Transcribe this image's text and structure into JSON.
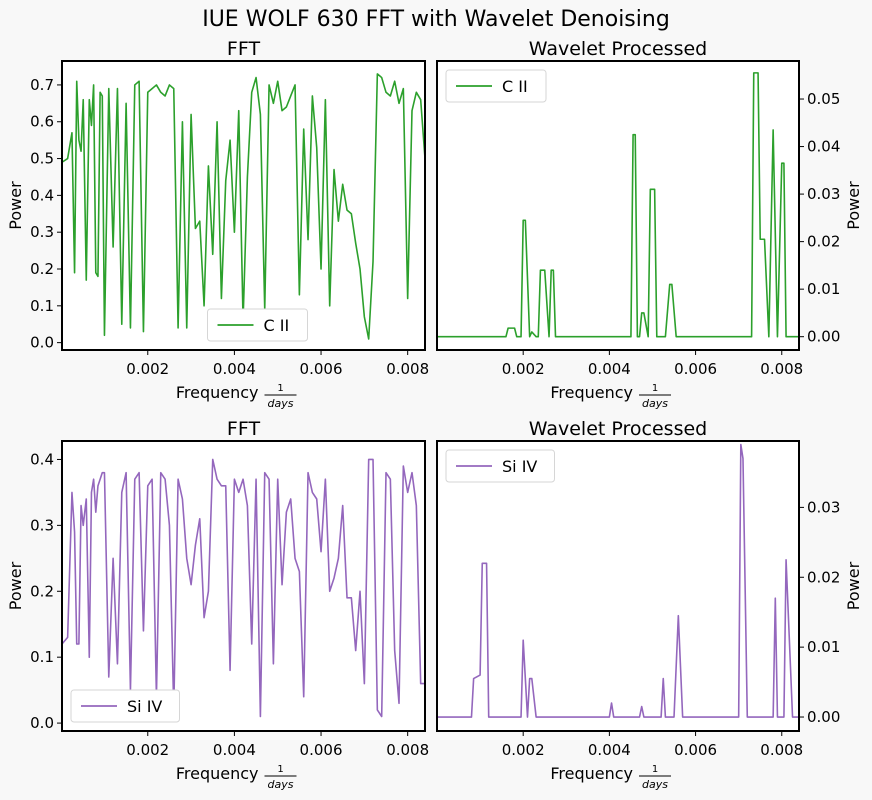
{
  "figure": {
    "title": "IUE WOLF 630 FFT with Wavelet Denoising",
    "colors": {
      "c2": "#2ca02c",
      "si4": "#9467bd"
    }
  },
  "chart_data": [
    {
      "id": "fft_c2",
      "type": "line",
      "title": "FFT",
      "xlabel": "Frequency",
      "xlabel_fraction": {
        "num": "1",
        "den": "days"
      },
      "ylabel": "Power",
      "xlim": [
        2e-05,
        0.0084
      ],
      "ylim": [
        -0.02,
        0.765
      ],
      "xticks": [
        0.002,
        0.004,
        0.006,
        0.008
      ],
      "xtick_labels": [
        "0.002",
        "0.004",
        "0.006",
        "0.008"
      ],
      "yticks": [
        0.0,
        0.1,
        0.2,
        0.3,
        0.4,
        0.5,
        0.6,
        0.7
      ],
      "ytick_labels": [
        "0.0",
        "0.1",
        "0.2",
        "0.3",
        "0.4",
        "0.5",
        "0.6",
        "0.7"
      ],
      "grid": false,
      "legend_position": "lower center",
      "series": [
        {
          "name": "C II",
          "color": "#2ca02c",
          "x": [
            2e-05,
            0.00015,
            0.00025,
            0.00031,
            0.00036,
            0.00041,
            0.00046,
            0.00051,
            0.00058,
            0.00065,
            0.0007,
            0.00075,
            0.0008,
            0.00085,
            0.0009,
            0.00095,
            0.001,
            0.0011,
            0.0012,
            0.0013,
            0.0014,
            0.0015,
            0.0016,
            0.0017,
            0.0018,
            0.0019,
            0.002,
            0.0021,
            0.0022,
            0.0023,
            0.0024,
            0.0025,
            0.0026,
            0.0027,
            0.0028,
            0.0029,
            0.003,
            0.0031,
            0.0032,
            0.0033,
            0.0034,
            0.0035,
            0.0036,
            0.0037,
            0.0038,
            0.0039,
            0.004,
            0.0041,
            0.0042,
            0.0043,
            0.0044,
            0.0045,
            0.0046,
            0.0047,
            0.0048,
            0.0049,
            0.005,
            0.0051,
            0.0052,
            0.0053,
            0.0054,
            0.0055,
            0.0056,
            0.0057,
            0.0058,
            0.0059,
            0.006,
            0.0061,
            0.0062,
            0.0063,
            0.0064,
            0.0065,
            0.0066,
            0.0067,
            0.0068,
            0.0069,
            0.007,
            0.0071,
            0.0072,
            0.0073,
            0.0074,
            0.0075,
            0.0076,
            0.0077,
            0.0078,
            0.0079,
            0.008,
            0.0081,
            0.0082,
            0.0083,
            0.0084
          ],
          "y": [
            0.49,
            0.5,
            0.57,
            0.19,
            0.71,
            0.55,
            0.52,
            0.66,
            0.17,
            0.66,
            0.59,
            0.7,
            0.19,
            0.18,
            0.68,
            0.67,
            0.02,
            0.69,
            0.26,
            0.69,
            0.05,
            0.65,
            0.04,
            0.7,
            0.71,
            0.03,
            0.68,
            0.69,
            0.7,
            0.68,
            0.67,
            0.7,
            0.69,
            0.04,
            0.6,
            0.04,
            0.62,
            0.31,
            0.33,
            0.1,
            0.48,
            0.24,
            0.6,
            0.12,
            0.44,
            0.55,
            0.3,
            0.63,
            0.06,
            0.45,
            0.68,
            0.72,
            0.62,
            0.09,
            0.7,
            0.65,
            0.71,
            0.63,
            0.64,
            0.67,
            0.7,
            0.13,
            0.58,
            0.28,
            0.67,
            0.53,
            0.2,
            0.66,
            0.1,
            0.47,
            0.33,
            0.43,
            0.36,
            0.35,
            0.27,
            0.2,
            0.07,
            0.01,
            0.22,
            0.73,
            0.72,
            0.68,
            0.67,
            0.71,
            0.65,
            0.69,
            0.12,
            0.63,
            0.68,
            0.66,
            0.5
          ]
        }
      ]
    },
    {
      "id": "wav_c2",
      "type": "line",
      "title": "Wavelet Processed",
      "xlabel": "Frequency",
      "xlabel_fraction": {
        "num": "1",
        "den": "days"
      },
      "ylabel": "Power",
      "yaxis_side": "right",
      "xlim": [
        0.0,
        0.0084
      ],
      "ylim": [
        -0.0028,
        0.058
      ],
      "xticks": [
        0.002,
        0.004,
        0.006,
        0.008
      ],
      "xtick_labels": [
        "0.002",
        "0.004",
        "0.006",
        "0.008"
      ],
      "yticks": [
        0.0,
        0.01,
        0.02,
        0.03,
        0.04,
        0.05
      ],
      "ytick_labels": [
        "0.00",
        "0.01",
        "0.02",
        "0.03",
        "0.04",
        "0.05"
      ],
      "grid": false,
      "legend_position": "upper left",
      "series": [
        {
          "name": "C II",
          "color": "#2ca02c",
          "x": [
            0.0,
            0.0016,
            0.00165,
            0.0018,
            0.00185,
            0.00195,
            0.002,
            0.00205,
            0.00215,
            0.0022,
            0.0023,
            0.00235,
            0.0024,
            0.0025,
            0.0026,
            0.00265,
            0.0027,
            0.00275,
            0.0028,
            0.0045,
            0.00455,
            0.0046,
            0.00465,
            0.0047,
            0.00475,
            0.0048,
            0.0049,
            0.00495,
            0.00505,
            0.0051,
            0.0052,
            0.0053,
            0.0054,
            0.00545,
            0.00555,
            0.0056,
            0.0073,
            0.00735,
            0.00745,
            0.0075,
            0.0076,
            0.0077,
            0.0078,
            0.0079,
            0.008,
            0.00805,
            0.0081,
            0.0084
          ],
          "y": [
            0.0,
            0.0,
            0.0018,
            0.0018,
            0.0,
            0.0,
            0.0245,
            0.0245,
            0.0,
            0.001,
            0.0,
            0.0,
            0.014,
            0.014,
            0.0,
            0.014,
            0.014,
            0.0,
            0.0,
            0.0,
            0.0425,
            0.0425,
            0.0,
            0.0,
            0.005,
            0.005,
            0.0,
            0.031,
            0.031,
            0.0,
            0.0,
            0.0,
            0.011,
            0.011,
            0.0,
            0.0,
            0.0,
            0.0555,
            0.0555,
            0.0205,
            0.0205,
            0.0,
            0.0435,
            0.0,
            0.0365,
            0.0365,
            0.0,
            0.0
          ]
        }
      ]
    },
    {
      "id": "fft_si4",
      "type": "line",
      "title": "FFT",
      "xlabel": "Frequency",
      "xlabel_fraction": {
        "num": "1",
        "den": "days"
      },
      "ylabel": "Power",
      "xlim": [
        2e-05,
        0.0084
      ],
      "ylim": [
        -0.012,
        0.428
      ],
      "xticks": [
        0.002,
        0.004,
        0.006,
        0.008
      ],
      "xtick_labels": [
        "0.002",
        "0.004",
        "0.006",
        "0.008"
      ],
      "yticks": [
        0.0,
        0.1,
        0.2,
        0.3,
        0.4
      ],
      "ytick_labels": [
        "0.0",
        "0.1",
        "0.2",
        "0.3",
        "0.4"
      ],
      "grid": false,
      "legend_position": "lower left",
      "series": [
        {
          "name": "Si IV",
          "color": "#9467bd",
          "x": [
            2e-05,
            0.00015,
            0.00025,
            0.00031,
            0.00036,
            0.00041,
            0.00046,
            0.00051,
            0.00058,
            0.00065,
            0.0007,
            0.00075,
            0.0008,
            0.00085,
            0.0009,
            0.00095,
            0.001,
            0.0011,
            0.0012,
            0.0013,
            0.0014,
            0.0015,
            0.0016,
            0.0017,
            0.0018,
            0.0019,
            0.002,
            0.0021,
            0.0022,
            0.0023,
            0.0024,
            0.0025,
            0.0026,
            0.0027,
            0.0028,
            0.0029,
            0.003,
            0.0031,
            0.0032,
            0.0033,
            0.0034,
            0.0035,
            0.0036,
            0.0037,
            0.0038,
            0.0039,
            0.004,
            0.0041,
            0.0042,
            0.0043,
            0.0044,
            0.0045,
            0.0046,
            0.0047,
            0.0048,
            0.0049,
            0.005,
            0.0051,
            0.0052,
            0.0053,
            0.0054,
            0.0055,
            0.0056,
            0.0057,
            0.0058,
            0.0059,
            0.006,
            0.0061,
            0.0062,
            0.0063,
            0.0064,
            0.0065,
            0.0066,
            0.0067,
            0.0068,
            0.0069,
            0.007,
            0.0071,
            0.0072,
            0.0073,
            0.0074,
            0.0075,
            0.0076,
            0.0077,
            0.0078,
            0.0079,
            0.008,
            0.0081,
            0.0082,
            0.0083,
            0.0084
          ],
          "y": [
            0.12,
            0.13,
            0.35,
            0.29,
            0.12,
            0.12,
            0.33,
            0.3,
            0.34,
            0.1,
            0.35,
            0.37,
            0.32,
            0.36,
            0.37,
            0.38,
            0.38,
            0.07,
            0.25,
            0.09,
            0.35,
            0.38,
            0.05,
            0.37,
            0.38,
            0.14,
            0.36,
            0.37,
            0.04,
            0.38,
            0.37,
            0.3,
            0.02,
            0.37,
            0.34,
            0.25,
            0.21,
            0.27,
            0.31,
            0.16,
            0.2,
            0.4,
            0.37,
            0.36,
            0.36,
            0.08,
            0.37,
            0.35,
            0.37,
            0.33,
            0.12,
            0.37,
            0.01,
            0.38,
            0.37,
            0.09,
            0.37,
            0.21,
            0.32,
            0.34,
            0.25,
            0.23,
            0.04,
            0.38,
            0.35,
            0.34,
            0.26,
            0.37,
            0.2,
            0.22,
            0.25,
            0.33,
            0.19,
            0.19,
            0.11,
            0.2,
            0.06,
            0.4,
            0.4,
            0.02,
            0.01,
            0.38,
            0.37,
            0.11,
            0.03,
            0.39,
            0.35,
            0.38,
            0.33,
            0.06,
            0.06
          ]
        }
      ]
    },
    {
      "id": "wav_si4",
      "type": "line",
      "title": "Wavelet Processed",
      "xlabel": "Frequency",
      "xlabel_fraction": {
        "num": "1",
        "den": "days"
      },
      "ylabel": "Power",
      "yaxis_side": "right",
      "xlim": [
        0.0,
        0.0084
      ],
      "ylim": [
        -0.002,
        0.0395
      ],
      "xticks": [
        0.002,
        0.004,
        0.006,
        0.008
      ],
      "xtick_labels": [
        "0.002",
        "0.004",
        "0.006",
        "0.008"
      ],
      "yticks": [
        0.0,
        0.01,
        0.02,
        0.03
      ],
      "ytick_labels": [
        "0.00",
        "0.01",
        "0.02",
        "0.03"
      ],
      "grid": false,
      "legend_position": "upper left",
      "series": [
        {
          "name": "Si IV",
          "color": "#9467bd",
          "x": [
            0.0,
            0.0008,
            0.00085,
            0.001,
            0.00105,
            0.00115,
            0.0012,
            0.0019,
            0.00195,
            0.002,
            0.0021,
            0.00215,
            0.0022,
            0.0023,
            0.004,
            0.00405,
            0.0041,
            0.0047,
            0.00475,
            0.0048,
            0.0052,
            0.00525,
            0.0053,
            0.0055,
            0.0056,
            0.0057,
            0.0069,
            0.007,
            0.00705,
            0.0071,
            0.0072,
            0.0078,
            0.00785,
            0.0079,
            0.00805,
            0.0081,
            0.00825,
            0.0084
          ],
          "y": [
            0.0,
            0.0,
            0.0055,
            0.006,
            0.022,
            0.022,
            0.0,
            0.0,
            0.0,
            0.011,
            0.0,
            0.0055,
            0.0055,
            0.0,
            0.0,
            0.002,
            0.0,
            0.0,
            0.0015,
            0.0,
            0.0,
            0.0055,
            0.0,
            0.0,
            0.0145,
            0.0,
            0.0,
            0.0,
            0.039,
            0.037,
            0.0,
            0.0,
            0.017,
            0.0,
            0.0,
            0.0225,
            0.0,
            0.0
          ]
        }
      ]
    }
  ]
}
